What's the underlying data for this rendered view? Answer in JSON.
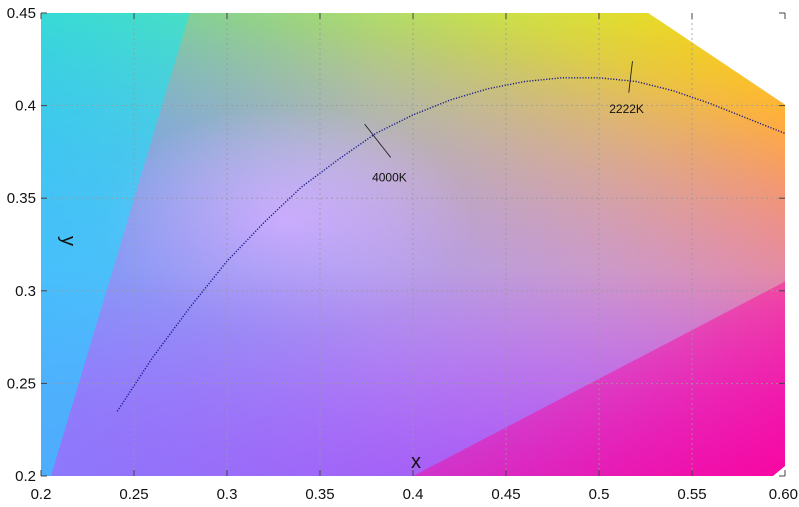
{
  "chart_data": {
    "type": "line",
    "title": "",
    "xlabel": "x",
    "ylabel": "y",
    "xlim": [
      0.2,
      0.6
    ],
    "ylim": [
      0.2,
      0.45
    ],
    "x_ticks": [
      "0.2",
      "0.25",
      "0.3",
      "0.35",
      "0.4",
      "0.45",
      "0.5",
      "0.55",
      "0.60"
    ],
    "y_ticks": [
      "0.2",
      "0.25",
      "0.3",
      "0.35",
      "0.4",
      "0.45"
    ],
    "grid": true,
    "background": "CIE 1931 chromaticity diagram color fill",
    "series": [
      {
        "color": "#1a1a8c",
        "style": "dotted",
        "x": [
          0.241,
          0.26,
          0.28,
          0.3,
          0.32,
          0.34,
          0.36,
          0.38,
          0.4,
          0.42,
          0.44,
          0.46,
          0.48,
          0.5,
          0.52,
          0.54,
          0.56,
          0.58,
          0.6
        ],
        "y": [
          0.235,
          0.264,
          0.291,
          0.316,
          0.337,
          0.356,
          0.371,
          0.385,
          0.395,
          0.403,
          0.409,
          0.413,
          0.415,
          0.415,
          0.413,
          0.408,
          0.401,
          0.393,
          0.385
        ]
      }
    ],
    "annotations": [
      {
        "label": "4000K",
        "x": 0.38,
        "y": 0.38,
        "isotherm": [
          [
            0.374,
            0.39
          ],
          [
            0.388,
            0.372
          ]
        ]
      },
      {
        "label": "2222K",
        "x": 0.517,
        "y": 0.414,
        "isotherm": [
          [
            0.518,
            0.424
          ],
          [
            0.516,
            0.407
          ]
        ]
      }
    ]
  }
}
